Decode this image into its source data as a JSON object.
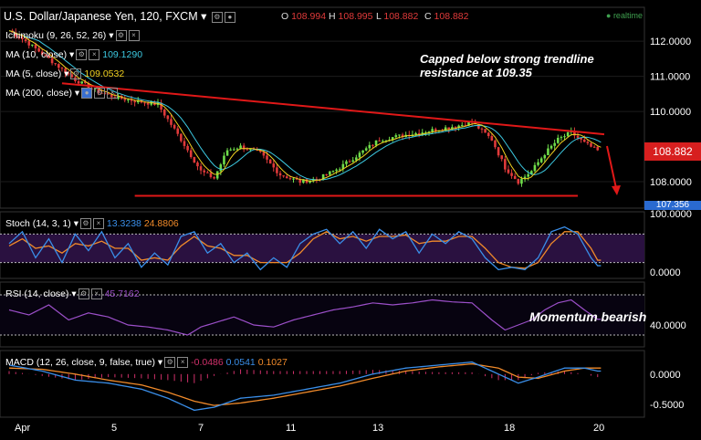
{
  "header": {
    "title": "U.S. Dollar/Japanese Yen, 120, FXCM",
    "ohlc": [
      {
        "label": "O",
        "value": "108.994"
      },
      {
        "label": "H",
        "value": "108.995"
      },
      {
        "label": "L",
        "value": "108.882"
      },
      {
        "label": "C",
        "value": "108.882"
      }
    ],
    "realtime": "realtime"
  },
  "indicators": {
    "ichimoku": {
      "label": "Ichimoku (9, 26, 52, 26)"
    },
    "ma10": {
      "label": "MA (10, close)",
      "value": "109.1290"
    },
    "ma5": {
      "label": "MA (5, close)",
      "value": "109.0532"
    },
    "ma200": {
      "label": "MA (200, close)"
    }
  },
  "stoch": {
    "label": "Stoch (14, 3, 1)",
    "k": "13.3238",
    "d": "24.8806"
  },
  "rsi": {
    "label": "RSI (14, close)",
    "value": "45.7162"
  },
  "macd": {
    "label": "MACD (12, 26, close, 9, false, true)",
    "hist": "-0.0486",
    "macd": "0.0541",
    "signal": "0.1027"
  },
  "annotations": {
    "trend_line1": "Capped below strong trendline",
    "trend_line2": "resistance at 109.35",
    "momentum": "Momentum bearish"
  },
  "price_box": "108.882",
  "price_box_low": "107.356",
  "colors": {
    "bull": "#6fdc4a",
    "bear": "#e03a3a",
    "ma10": "#3cc8e0",
    "ma5": "#f0d020",
    "trend": "#e01818",
    "stoch_k": "#3a8ee8",
    "stoch_d": "#f08a2a",
    "rsi": "#9b4fc8",
    "macd": "#3a8ee8",
    "signal": "#f08a2a",
    "hist": "#d0306a"
  },
  "chart_data": [
    {
      "type": "candlestick",
      "title": "U.S. Dollar/Japanese Yen, 120, FXCM",
      "x_ticks": [
        "Apr",
        "5",
        "7",
        "11",
        "13",
        "18",
        "20"
      ],
      "y_ticks": [
        "112.0000",
        "111.0000",
        "110.0000",
        "108.0000"
      ],
      "ylim": [
        107.3,
        112.6
      ],
      "close_anchors": [
        [
          0,
          112.3
        ],
        [
          5,
          112.0
        ],
        [
          12,
          111.5
        ],
        [
          20,
          110.9
        ],
        [
          26,
          110.6
        ],
        [
          32,
          110.4
        ],
        [
          38,
          110.3
        ],
        [
          45,
          110.2
        ],
        [
          52,
          109.2
        ],
        [
          58,
          108.3
        ],
        [
          62,
          108.1
        ],
        [
          66,
          108.9
        ],
        [
          70,
          109.0
        ],
        [
          76,
          108.8
        ],
        [
          82,
          108.2
        ],
        [
          88,
          108.0
        ],
        [
          94,
          108.1
        ],
        [
          100,
          108.4
        ],
        [
          106,
          108.8
        ],
        [
          112,
          109.2
        ],
        [
          118,
          109.3
        ],
        [
          124,
          109.4
        ],
        [
          130,
          109.5
        ],
        [
          136,
          109.6
        ],
        [
          140,
          109.7
        ],
        [
          146,
          109.2
        ],
        [
          150,
          108.4
        ],
        [
          154,
          108.0
        ],
        [
          158,
          108.3
        ],
        [
          162,
          108.8
        ],
        [
          166,
          109.2
        ],
        [
          170,
          109.4
        ],
        [
          174,
          109.1
        ],
        [
          178,
          108.88
        ]
      ],
      "trendlines": [
        {
          "name": "resistance",
          "from": [
            16,
            110.8
          ],
          "to": [
            180,
            109.35
          ]
        },
        {
          "name": "support",
          "from": [
            38,
            107.6
          ],
          "to": [
            172,
            107.6
          ]
        }
      ],
      "y_extra": "100.0000"
    },
    {
      "type": "line",
      "name": "Stoch",
      "ylim": [
        0,
        100
      ],
      "y_ticks": [
        "0.0000"
      ],
      "levels": [
        80,
        20
      ],
      "k_anchors": [
        [
          0,
          60
        ],
        [
          4,
          85
        ],
        [
          8,
          30
        ],
        [
          12,
          70
        ],
        [
          16,
          20
        ],
        [
          20,
          80
        ],
        [
          24,
          45
        ],
        [
          28,
          85
        ],
        [
          32,
          30
        ],
        [
          36,
          60
        ],
        [
          40,
          10
        ],
        [
          44,
          40
        ],
        [
          48,
          15
        ],
        [
          52,
          75
        ],
        [
          56,
          85
        ],
        [
          60,
          40
        ],
        [
          64,
          60
        ],
        [
          68,
          20
        ],
        [
          72,
          40
        ],
        [
          76,
          5
        ],
        [
          80,
          30
        ],
        [
          84,
          10
        ],
        [
          88,
          60
        ],
        [
          92,
          80
        ],
        [
          96,
          90
        ],
        [
          100,
          60
        ],
        [
          104,
          85
        ],
        [
          108,
          50
        ],
        [
          112,
          90
        ],
        [
          116,
          70
        ],
        [
          120,
          85
        ],
        [
          124,
          40
        ],
        [
          128,
          80
        ],
        [
          132,
          60
        ],
        [
          136,
          85
        ],
        [
          140,
          70
        ],
        [
          144,
          30
        ],
        [
          148,
          5
        ],
        [
          152,
          10
        ],
        [
          156,
          5
        ],
        [
          160,
          30
        ],
        [
          164,
          85
        ],
        [
          168,
          95
        ],
        [
          172,
          80
        ],
        [
          176,
          30
        ],
        [
          178,
          13.3
        ]
      ],
      "d_anchors": [
        [
          0,
          55
        ],
        [
          4,
          70
        ],
        [
          8,
          50
        ],
        [
          12,
          55
        ],
        [
          16,
          40
        ],
        [
          20,
          60
        ],
        [
          24,
          55
        ],
        [
          28,
          65
        ],
        [
          32,
          50
        ],
        [
          36,
          50
        ],
        [
          40,
          25
        ],
        [
          44,
          30
        ],
        [
          48,
          25
        ],
        [
          52,
          55
        ],
        [
          56,
          75
        ],
        [
          60,
          55
        ],
        [
          64,
          50
        ],
        [
          68,
          35
        ],
        [
          72,
          35
        ],
        [
          76,
          20
        ],
        [
          80,
          20
        ],
        [
          84,
          20
        ],
        [
          88,
          40
        ],
        [
          92,
          70
        ],
        [
          96,
          85
        ],
        [
          100,
          70
        ],
        [
          104,
          75
        ],
        [
          108,
          65
        ],
        [
          112,
          75
        ],
        [
          116,
          75
        ],
        [
          120,
          78
        ],
        [
          124,
          60
        ],
        [
          128,
          65
        ],
        [
          132,
          65
        ],
        [
          136,
          75
        ],
        [
          140,
          75
        ],
        [
          144,
          50
        ],
        [
          148,
          20
        ],
        [
          152,
          10
        ],
        [
          156,
          8
        ],
        [
          160,
          20
        ],
        [
          164,
          60
        ],
        [
          168,
          85
        ],
        [
          172,
          85
        ],
        [
          176,
          50
        ],
        [
          178,
          24.9
        ]
      ]
    },
    {
      "type": "line",
      "name": "RSI",
      "ylim": [
        20,
        80
      ],
      "y_ticks": [
        "40.0000"
      ],
      "levels": [
        70,
        30
      ],
      "anchors": [
        [
          0,
          55
        ],
        [
          6,
          50
        ],
        [
          12,
          60
        ],
        [
          18,
          45
        ],
        [
          24,
          52
        ],
        [
          30,
          48
        ],
        [
          36,
          40
        ],
        [
          42,
          38
        ],
        [
          48,
          35
        ],
        [
          54,
          30
        ],
        [
          58,
          38
        ],
        [
          62,
          42
        ],
        [
          68,
          48
        ],
        [
          74,
          40
        ],
        [
          80,
          38
        ],
        [
          86,
          45
        ],
        [
          92,
          50
        ],
        [
          98,
          55
        ],
        [
          104,
          58
        ],
        [
          110,
          62
        ],
        [
          116,
          60
        ],
        [
          122,
          62
        ],
        [
          128,
          65
        ],
        [
          134,
          63
        ],
        [
          140,
          62
        ],
        [
          146,
          45
        ],
        [
          150,
          35
        ],
        [
          154,
          40
        ],
        [
          158,
          45
        ],
        [
          162,
          55
        ],
        [
          166,
          62
        ],
        [
          170,
          65
        ],
        [
          174,
          55
        ],
        [
          178,
          45.7
        ]
      ]
    },
    {
      "type": "line",
      "name": "MACD",
      "ylim": [
        -0.7,
        0.3
      ],
      "y_ticks": [
        "0.0000",
        "-0.5000"
      ],
      "macd_anchors": [
        [
          0,
          0.15
        ],
        [
          10,
          0.05
        ],
        [
          20,
          -0.1
        ],
        [
          30,
          -0.15
        ],
        [
          40,
          -0.25
        ],
        [
          48,
          -0.4
        ],
        [
          56,
          -0.6
        ],
        [
          62,
          -0.55
        ],
        [
          70,
          -0.4
        ],
        [
          80,
          -0.35
        ],
        [
          90,
          -0.25
        ],
        [
          100,
          -0.15
        ],
        [
          110,
          0.0
        ],
        [
          120,
          0.1
        ],
        [
          130,
          0.15
        ],
        [
          140,
          0.2
        ],
        [
          148,
          0.0
        ],
        [
          154,
          -0.15
        ],
        [
          160,
          -0.05
        ],
        [
          168,
          0.1
        ],
        [
          174,
          0.1
        ],
        [
          178,
          0.05
        ]
      ],
      "signal_anchors": [
        [
          0,
          0.1
        ],
        [
          10,
          0.08
        ],
        [
          20,
          0.0
        ],
        [
          30,
          -0.1
        ],
        [
          40,
          -0.18
        ],
        [
          48,
          -0.3
        ],
        [
          56,
          -0.45
        ],
        [
          62,
          -0.52
        ],
        [
          70,
          -0.48
        ],
        [
          80,
          -0.4
        ],
        [
          90,
          -0.3
        ],
        [
          100,
          -0.2
        ],
        [
          110,
          -0.07
        ],
        [
          120,
          0.05
        ],
        [
          130,
          0.12
        ],
        [
          140,
          0.17
        ],
        [
          148,
          0.1
        ],
        [
          154,
          -0.05
        ],
        [
          160,
          -0.07
        ],
        [
          168,
          0.05
        ],
        [
          174,
          0.1
        ],
        [
          178,
          0.1
        ]
      ]
    }
  ]
}
